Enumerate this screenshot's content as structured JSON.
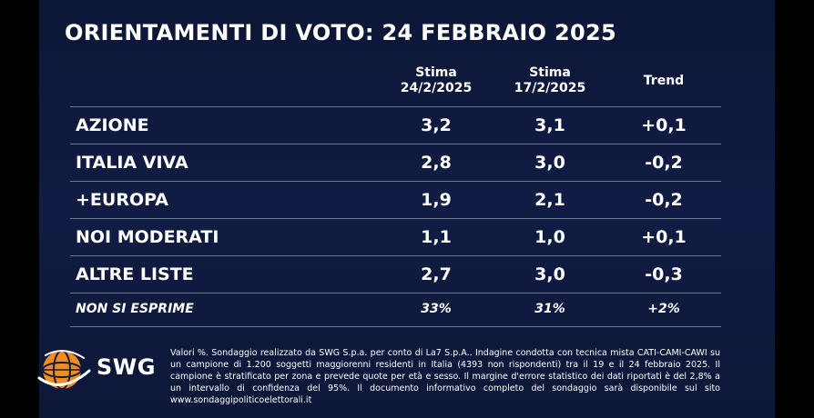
{
  "title": "ORIENTAMENTI DI VOTO: 24 FEBBRAIO 2025",
  "columns": {
    "current": {
      "line1": "Stima",
      "line2": "24/2/2025"
    },
    "previous": {
      "line1": "Stima",
      "line2": "17/2/2025"
    },
    "trend": "Trend"
  },
  "rows": [
    {
      "party": "AZIONE",
      "current": "3,2",
      "previous": "3,1",
      "trend": "+0,1"
    },
    {
      "party": "ITALIA VIVA",
      "current": "2,8",
      "previous": "3,0",
      "trend": "-0,2"
    },
    {
      "party": "+EUROPA",
      "current": "1,9",
      "previous": "2,1",
      "trend": "-0,2"
    },
    {
      "party": "NOI MODERATI",
      "current": "1,1",
      "previous": "1,0",
      "trend": "+0,1"
    },
    {
      "party": "ALTRE LISTE",
      "current": "2,7",
      "previous": "3,0",
      "trend": "-0,3"
    },
    {
      "party": "NON SI ESPRIME",
      "current": "33%",
      "previous": "31%",
      "trend": "+2%"
    }
  ],
  "logo": {
    "text": "SWG",
    "icon": "globe-icon",
    "color": "#f28c1a"
  },
  "footnote": "Valori %. Sondaggio realizzato da SWG S.p.a. per conto di La7 S.p.A.. Indagine condotta con tecnica mista CATI-CAMI-CAWI su un campione di 1.200 soggetti maggiorenni residenti in Italia (4393 non rispondenti) tra il 19 e il 24 febbraio 2025. Il campione è stratificato per zona e prevede quote per età e sesso. Il margine d'errore statistico dei dati riportati è del 2,8% a un intervallo di confidenza del 95%. Il documento informativo completo del sondaggio sarà disponibile sul sito www.sondaggipoliticoelettorali.it",
  "colors": {
    "background": "#111c44",
    "divider": "#6d7590",
    "text": "#ffffff"
  }
}
